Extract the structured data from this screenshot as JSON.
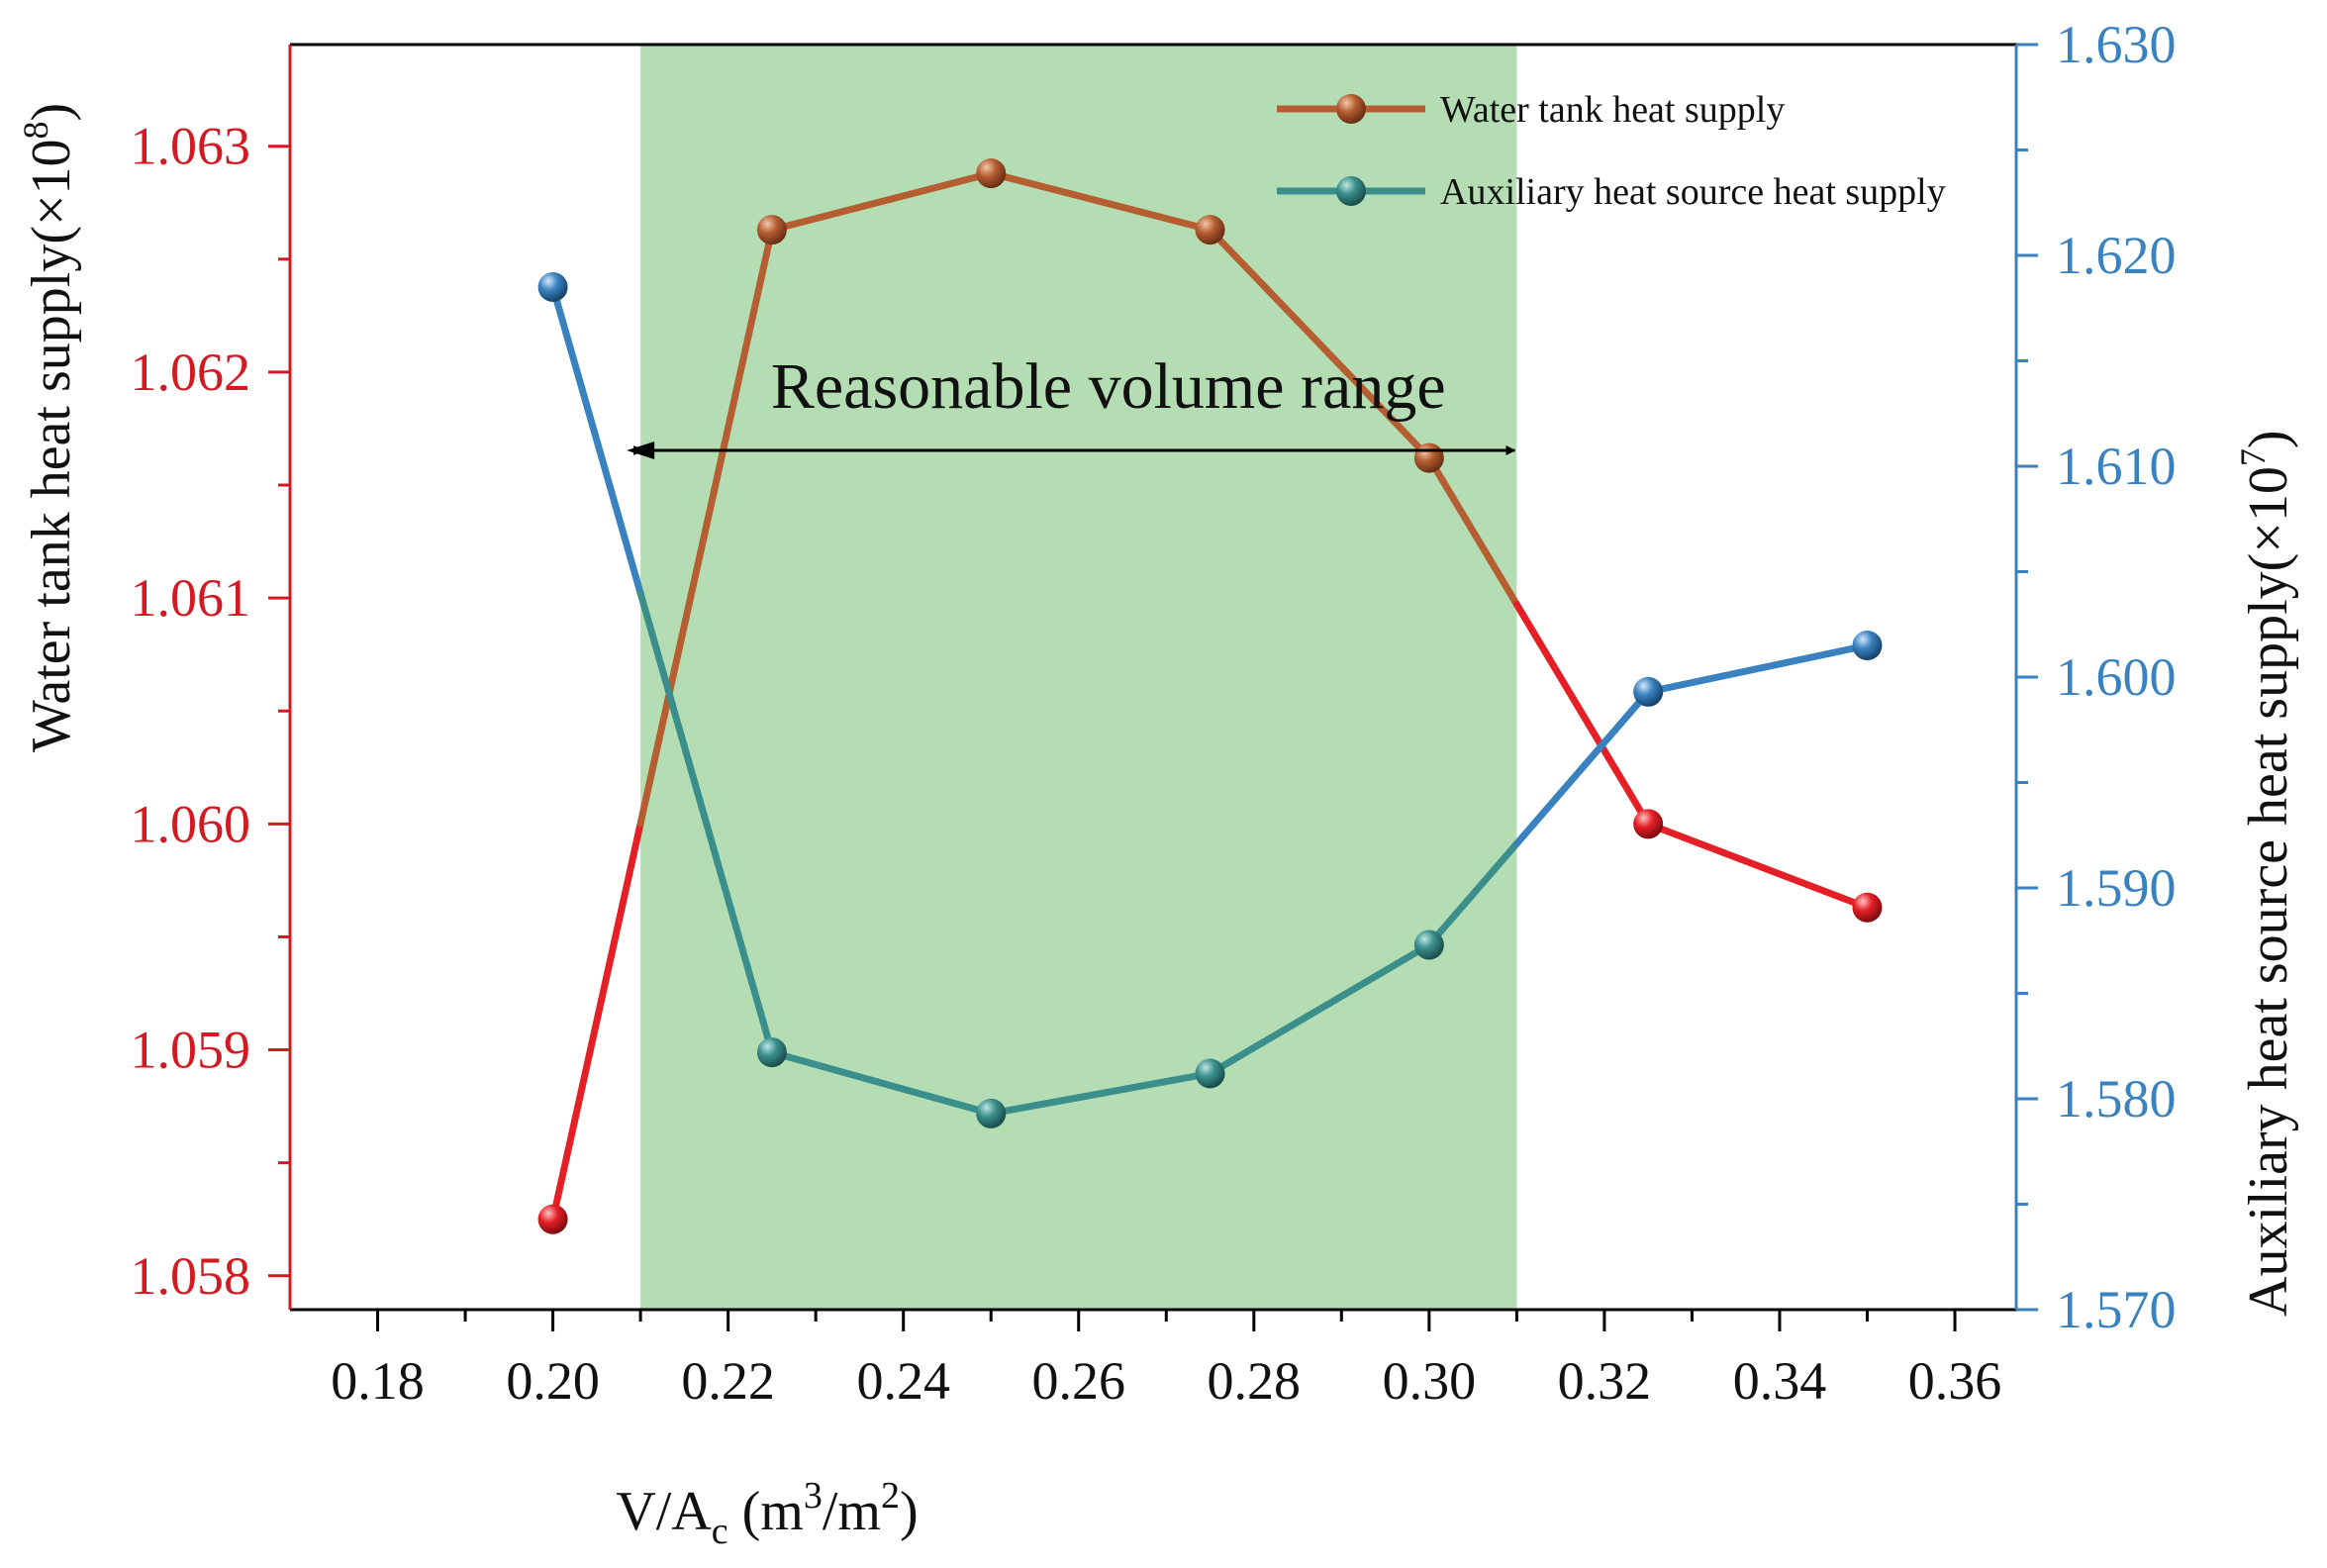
{
  "chart_data": {
    "type": "line",
    "xlabel": {
      "prefix": "V/A",
      "sub": "c",
      "mid": " (m",
      "sup1": "3",
      "mid2": "/m",
      "sup2": "2",
      "end": ")"
    },
    "ylabel_left": {
      "text": "Water tank heat supply(×10",
      "sup": "8",
      "end": ")"
    },
    "ylabel_right": {
      "text": "Auxiliary heat source heat supply(×10",
      "sup": "7",
      "end": ")"
    },
    "xlim": [
      0.17,
      0.367
    ],
    "ylim_left": [
      1.05785,
      1.06345
    ],
    "ylim_right": [
      1.57,
      1.63
    ],
    "x_ticks": [
      "0.18",
      "0.20",
      "0.22",
      "0.24",
      "0.26",
      "0.28",
      "0.30",
      "0.32",
      "0.34",
      "0.36"
    ],
    "y_left_ticks": [
      "1.058",
      "1.059",
      "1.060",
      "1.061",
      "1.062",
      "1.063"
    ],
    "y_right_ticks": [
      "1.570",
      "1.580",
      "1.590",
      "1.600",
      "1.610",
      "1.620",
      "1.630"
    ],
    "series": [
      {
        "name": "Water tank heat supply",
        "axis": "left",
        "x": [
          0.2,
          0.225,
          0.25,
          0.275,
          0.3,
          0.325,
          0.35
        ],
        "values": [
          1.05825,
          1.06263,
          1.06288,
          1.06263,
          1.06162,
          1.06,
          1.05963
        ]
      },
      {
        "name": "Auxiliary heat source heat supply",
        "axis": "right",
        "x": [
          0.2,
          0.225,
          0.25,
          0.275,
          0.3,
          0.325,
          0.35
        ],
        "values": [
          1.6185,
          1.5822,
          1.5793,
          1.5812,
          1.5873,
          1.5993,
          1.6015
        ]
      }
    ],
    "highlight": {
      "label": "Reasonable volume range",
      "x_range": [
        0.21,
        0.31
      ]
    },
    "legend_position": "top-right",
    "colors": {
      "left_axis": "#d21a22",
      "right_axis": "#3a82bf",
      "water_line_in": "#b55e32",
      "water_line_out": "#e41f26",
      "aux_line_in": "#3a8f8c",
      "aux_line_out": "#3a82bf",
      "band": "#b5ddb3"
    }
  }
}
